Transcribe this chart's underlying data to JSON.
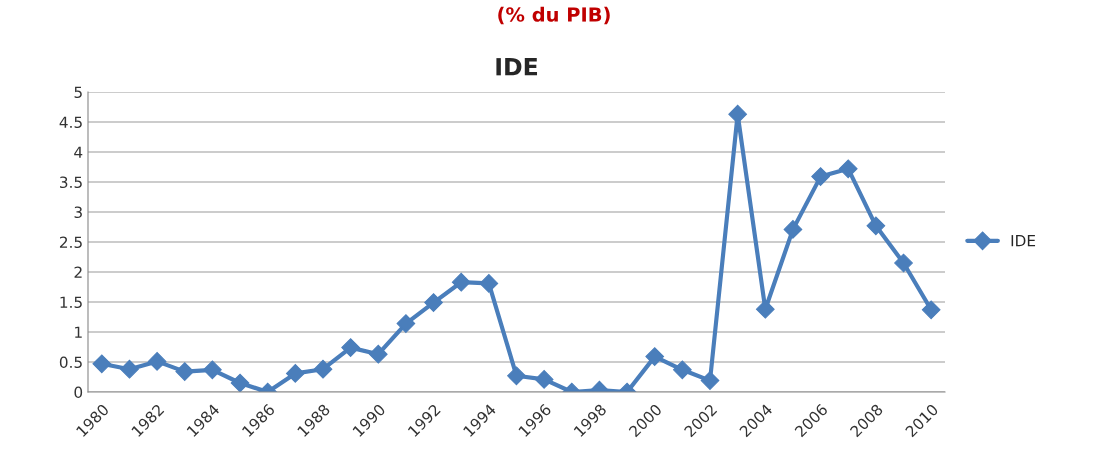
{
  "chart_data": {
    "type": "line",
    "title": "IDE",
    "annotations": [
      "(% du PIB)"
    ],
    "categories": [
      "1980",
      null,
      "1982",
      null,
      "1984",
      null,
      "1986",
      null,
      "1988",
      null,
      "1990",
      null,
      "1992",
      null,
      "1994",
      null,
      "1996",
      null,
      "1998",
      null,
      "2000",
      null,
      "2002",
      null,
      "2004",
      null,
      "2006",
      null,
      "2008",
      null,
      "2010"
    ],
    "series": [
      {
        "name": "IDE",
        "color": "#4a7ebb",
        "values": [
          0.47,
          0.38,
          0.51,
          0.34,
          0.37,
          0.15,
          0.0,
          0.31,
          0.38,
          0.74,
          0.63,
          1.14,
          1.49,
          1.83,
          1.81,
          0.27,
          0.21,
          0.0,
          0.03,
          0.0,
          0.59,
          0.37,
          0.19,
          4.63,
          1.38,
          2.71,
          3.59,
          3.72,
          2.77,
          2.15,
          1.37
        ]
      }
    ],
    "ylim": [
      0,
      5
    ],
    "yticks": [
      0,
      0.5,
      1,
      1.5,
      2,
      2.5,
      3,
      3.5,
      4,
      4.5,
      5
    ],
    "grid": "y",
    "legend": "right",
    "marker": "diamond",
    "line_style": "solid"
  }
}
